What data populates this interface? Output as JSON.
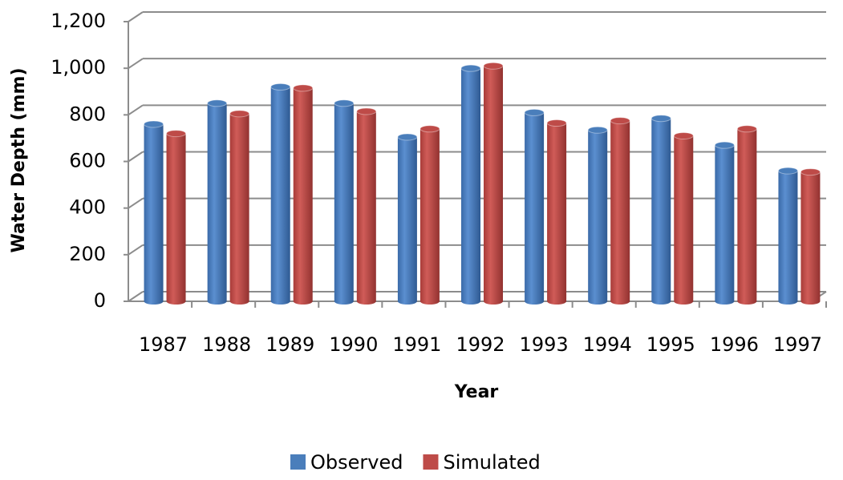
{
  "chart_data": {
    "type": "bar",
    "x_label": "Year",
    "y_label": "Water Depth (mm)",
    "categories": [
      "1987",
      "1988",
      "1989",
      "1990",
      "1991",
      "1992",
      "1993",
      "1994",
      "1995",
      "1996",
      "1997"
    ],
    "series": [
      {
        "name": "Observed",
        "color": "#4a7ebb",
        "values": [
          760,
          850,
          920,
          850,
          705,
          1000,
          810,
          735,
          785,
          670,
          560
        ]
      },
      {
        "name": "Simulated",
        "color": "#be4b48",
        "values": [
          720,
          805,
          915,
          815,
          740,
          1010,
          765,
          775,
          710,
          740,
          555
        ]
      }
    ],
    "ylim": [
      0,
      1200
    ],
    "yticks": [
      0,
      200,
      400,
      600,
      800,
      {
        "value": 1000,
        "label": "1,000"
      },
      {
        "value": 1200,
        "label": "1,200"
      }
    ],
    "grid": true,
    "legend": "bottom"
  }
}
